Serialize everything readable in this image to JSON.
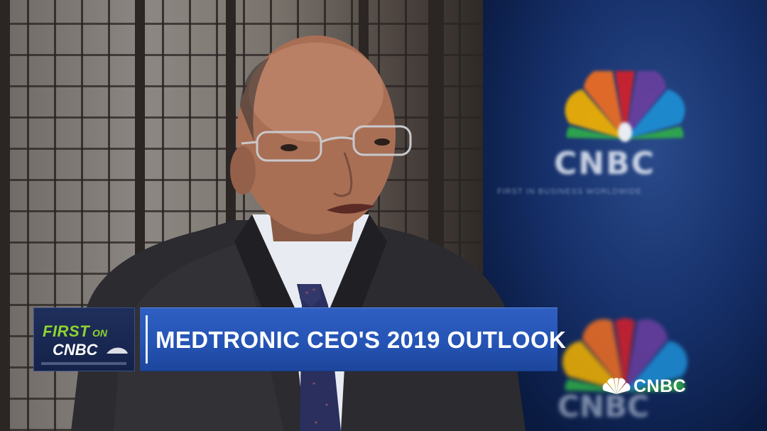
{
  "broadcast": {
    "lower_third": {
      "tag_first": "FIRST",
      "tag_on": "ON",
      "tag_network": "CNBC",
      "headline": "MEDTRONIC CEO'S 2019 OUTLOOK"
    },
    "backdrop": {
      "wall_logo_text": "CNBC",
      "wall_tagline": "FIRST IN BUSINESS WORLDWIDE"
    },
    "network_bug": {
      "label": "CNBC"
    }
  },
  "colors": {
    "headline_blue": "#2554b5",
    "tag_green": "#8fd42e",
    "backdrop_blue": "#16306a"
  },
  "icons": [
    "peacock-logo-icon",
    "cnbc-swoosh-icon"
  ]
}
